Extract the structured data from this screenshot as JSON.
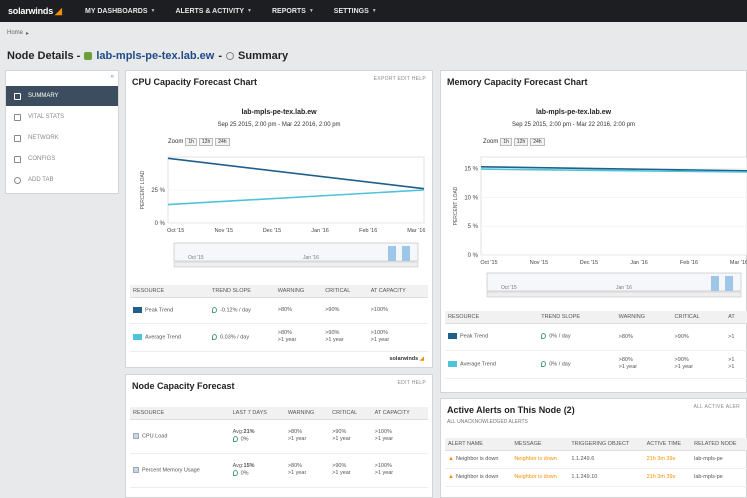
{
  "app": {
    "logo_text": "solarwinds"
  },
  "nav": {
    "items": [
      "MY DASHBOARDS",
      "ALERTS & ACTIVITY",
      "REPORTS",
      "SETTINGS"
    ]
  },
  "breadcrumb": {
    "home": "Home",
    "sep": "▸"
  },
  "page_title": {
    "prefix": "Node Details -",
    "node": "lab-mpls-pe-tex.lab.ew",
    "sep": "-",
    "view": "Summary"
  },
  "sidebar": {
    "collapse": "«",
    "items": [
      {
        "label": "SUMMARY",
        "active": true
      },
      {
        "label": "VITAL STATS"
      },
      {
        "label": "NETWORK"
      },
      {
        "label": "CONFIGS"
      },
      {
        "label": "ADD TAB"
      }
    ]
  },
  "cpu_panel": {
    "title": "CPU Capacity Forecast Chart",
    "actions": "EXPORT  EDIT  HELP",
    "chart_title": "lab-mpls-pe-tex.lab.ew",
    "chart_subtitle": "Sep 25 2015, 2:00 pm - Mar 22 2016, 2:00 pm",
    "zoom_label": "Zoom",
    "zoom_buttons": [
      "1h",
      "12h",
      "24h"
    ],
    "ylabel": "PERCENT LOAD",
    "table": {
      "headers": [
        "RESOURCE",
        "TREND SLOPE",
        "WARNING",
        "CRITICAL",
        "AT CAPACITY"
      ],
      "rows": [
        {
          "name": "Peak Trend",
          "color": "#1f5f8b",
          "slope": "-0.12% / day",
          "warning": ">80%",
          "critical": ">90%",
          "capacity": ">100%"
        },
        {
          "name": "Average Trend",
          "color": "#4fc3d9",
          "slope": "0.03% / day",
          "warning": ">80%",
          "warning2": ">1 year",
          "critical": ">90%",
          "critical2": ">1 year",
          "capacity": ">100%",
          "capacity2": ">1 year"
        }
      ]
    },
    "footer_logo": "solarwinds"
  },
  "memory_panel": {
    "title": "Memory Capacity Forecast Chart",
    "chart_title": "lab-mpls-pe-tex.lab.ew",
    "chart_subtitle": "Sep 25 2015, 2:00 pm - Mar 22 2016, 2:00 pm",
    "zoom_label": "Zoom",
    "zoom_buttons": [
      "1h",
      "12h",
      "24h"
    ],
    "ylabel": "PERCENT LOAD",
    "table": {
      "headers": [
        "RESOURCE",
        "TREND SLOPE",
        "WARNING",
        "CRITICAL",
        "AT"
      ],
      "rows": [
        {
          "name": "Peak Trend",
          "color": "#1f5f8b",
          "slope": "0% / day",
          "warning": ">80%",
          "critical": ">90%",
          "capacity": ">1"
        },
        {
          "name": "Average Trend",
          "color": "#4fc3d9",
          "slope": "0% / day",
          "warning": ">80%",
          "warning2": ">1 year",
          "critical": ">90%",
          "critical2": ">1 year",
          "capacity": ">1",
          "capacity2": ">1"
        }
      ]
    }
  },
  "node_capacity": {
    "title": "Node Capacity Forecast",
    "actions": "EDIT  HELP",
    "headers": [
      "RESOURCE",
      "LAST 7 DAYS",
      "WARNING",
      "CRITICAL",
      "AT CAPACITY"
    ],
    "rows": [
      {
        "name": "CPU Load",
        "avg_label": "Avg:",
        "avg": "21%",
        "trend": "0%",
        "warning": ">80%",
        "warning2": ">1 year",
        "critical": ">90%",
        "critical2": ">1 year",
        "capacity": ">100%",
        "capacity2": ">1 year"
      },
      {
        "name": "Percent Memory Usage",
        "avg_label": "Avg:",
        "avg": "15%",
        "trend": "0%",
        "warning": ">80%",
        "warning2": ">1 year",
        "critical": ">90%",
        "critical2": ">1 year",
        "capacity": ">100%",
        "capacity2": ">1 year"
      }
    ]
  },
  "alerts": {
    "title": "Active Alerts on This Node (2)",
    "subtitle": "ALL UNACKNOWLEDGED ALERTS",
    "actions": "ALL ACTIVE ALER",
    "headers": [
      "ALERT NAME",
      "MESSAGE",
      "TRIGGERING OBJECT",
      "ACTIVE TIME",
      "RELATED NODE"
    ],
    "rows": [
      {
        "name": "Neighbor is down",
        "message": "Neighbor is down",
        "object": "1.1.249.6",
        "time": "21h 3m 39s",
        "node": "lab-mpls-pe"
      },
      {
        "name": "Neighbor is down",
        "message": "Neighbor is down",
        "object": "1.1.249.10",
        "time": "21h 3m 39s",
        "node": "lab-mpls-pe"
      }
    ]
  },
  "chart_data": [
    {
      "type": "line",
      "title": "lab-mpls-pe-tex.lab.ew",
      "subtitle": "Sep 25 2015, 2:00 pm - Mar 22 2016, 2:00 pm",
      "ylabel": "PERCENT LOAD",
      "x_ticks": [
        "Oct '15",
        "Nov '15",
        "Dec '15",
        "Jan '16",
        "Feb '16",
        "Mar '16"
      ],
      "y_ticks": [
        "0 %",
        "25 %"
      ],
      "ylim": [
        0,
        50
      ],
      "navigator_ticks": [
        "Oct '15",
        "Jan '16"
      ],
      "series": [
        {
          "name": "Peak Trend",
          "color": "#1f5f8b",
          "x": [
            0,
            1
          ],
          "values": [
            49,
            26
          ]
        },
        {
          "name": "Average Trend",
          "color": "#4fc3d9",
          "x": [
            0,
            1
          ],
          "values": [
            14,
            25
          ]
        }
      ]
    },
    {
      "type": "line",
      "title": "lab-mpls-pe-tex.lab.ew",
      "subtitle": "Sep 25 2015, 2:00 pm - Mar 22 2016, 2:00 pm",
      "ylabel": "PERCENT LOAD",
      "x_ticks": [
        "Oct '15",
        "Nov '15",
        "Dec '15",
        "Jan '16",
        "Feb '16",
        "Mar '16"
      ],
      "y_ticks": [
        "0 %",
        "5 %",
        "10 %",
        "15 %"
      ],
      "ylim": [
        0,
        17
      ],
      "navigator_ticks": [
        "Oct '15",
        "Jan '16"
      ],
      "series": [
        {
          "name": "Peak Trend",
          "color": "#1f5f8b",
          "x": [
            0,
            1
          ],
          "values": [
            15.3,
            14.6
          ]
        },
        {
          "name": "Average Trend",
          "color": "#4fc3d9",
          "x": [
            0,
            1
          ],
          "values": [
            14.9,
            14.4
          ]
        }
      ]
    }
  ]
}
